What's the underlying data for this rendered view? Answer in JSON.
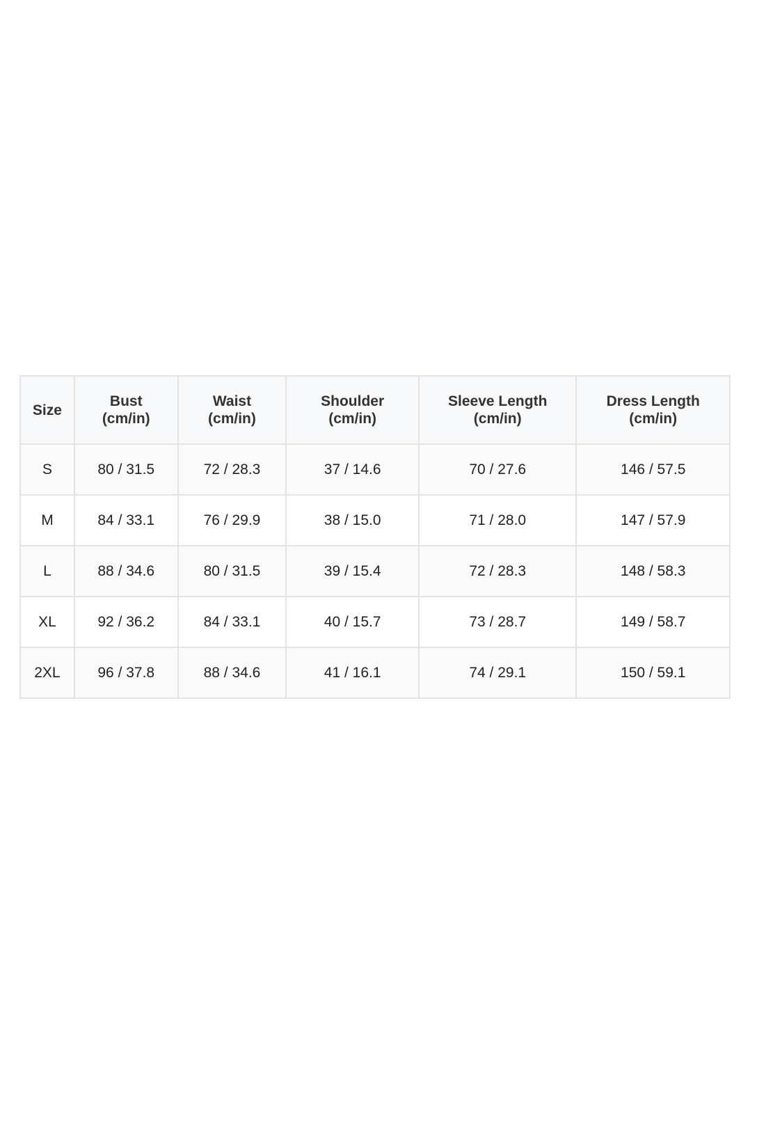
{
  "table": {
    "headers": [
      {
        "label": "Size",
        "unit": ""
      },
      {
        "label": "Bust",
        "unit": "(cm/in)"
      },
      {
        "label": "Waist",
        "unit": "(cm/in)"
      },
      {
        "label": "Shoulder",
        "unit": "(cm/in)"
      },
      {
        "label": "Sleeve Length",
        "unit": "(cm/in)"
      },
      {
        "label": "Dress Length",
        "unit": "(cm/in)"
      }
    ],
    "rows": [
      [
        "S",
        "80 / 31.5",
        "72 / 28.3",
        "37 / 14.6",
        "70 / 27.6",
        "146 / 57.5"
      ],
      [
        "M",
        "84 / 33.1",
        "76 / 29.9",
        "38 / 15.0",
        "71 / 28.0",
        "147 / 57.9"
      ],
      [
        "L",
        "88 / 34.6",
        "80 / 31.5",
        "39 / 15.4",
        "72 / 28.3",
        "148 / 58.3"
      ],
      [
        "XL",
        "92 / 36.2",
        "84 / 33.1",
        "40 / 15.7",
        "73 / 28.7",
        "149 / 58.7"
      ],
      [
        "2XL",
        "96 / 37.8",
        "88 / 34.6",
        "41 / 16.1",
        "74 / 29.1",
        "150 / 59.1"
      ]
    ]
  },
  "colors": {
    "border": "#e3e3e3",
    "header_bg": "#f7f8f9",
    "alt_row_bg": "#fafafa",
    "text": "#222222"
  }
}
